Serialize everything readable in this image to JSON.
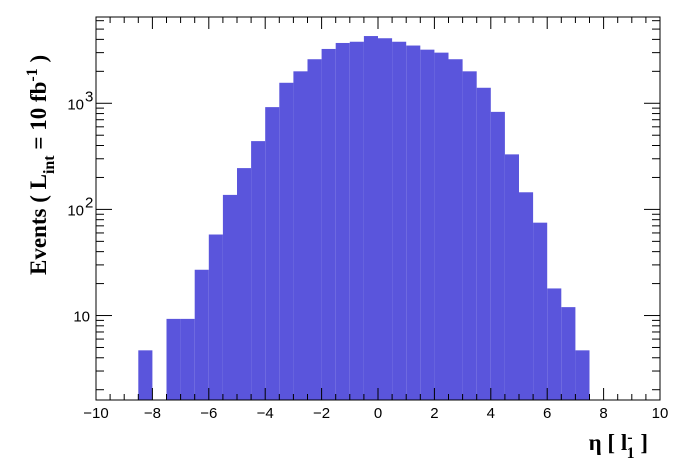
{
  "chart_data": {
    "type": "bar",
    "subtype": "histogram",
    "bar_color": "#5a55dc",
    "x_scale": "linear",
    "y_scale": "log",
    "xlim": [
      -10,
      10
    ],
    "ylim": [
      1.6,
      6500
    ],
    "bin_width": 0.5,
    "bin_edges_start": -8.5,
    "values": [
      4.7,
      0,
      9.3,
      9.3,
      27,
      58,
      137,
      245,
      440,
      920,
      1560,
      2000,
      2600,
      3250,
      3700,
      3800,
      4300,
      4100,
      3800,
      3500,
      3200,
      3000,
      2600,
      2000,
      1400,
      830,
      330,
      145,
      75,
      18,
      12,
      4.7
    ],
    "x_ticks": [
      -10,
      -8,
      -6,
      -4,
      -2,
      0,
      2,
      4,
      6,
      8,
      10
    ],
    "x_tick_labels": [
      "−10",
      "−8",
      "−6",
      "−4",
      "−2",
      "0",
      "2",
      "4",
      "6",
      "8",
      "10"
    ],
    "y_major_ticks": [
      10,
      100,
      1000
    ],
    "y_tick_labels": [
      "10",
      "10",
      "10"
    ],
    "y_tick_exponents": [
      "",
      "2",
      "3"
    ],
    "xlabel": {
      "main": "η [ l",
      "sup": "-",
      "sub": "1",
      "end": " ]"
    },
    "ylabel": {
      "main": "Events  ( L",
      "sub": "int",
      "mid": " = 10 fb",
      "sup": "-1",
      "end": " )"
    },
    "grid": false,
    "legend": "none"
  }
}
